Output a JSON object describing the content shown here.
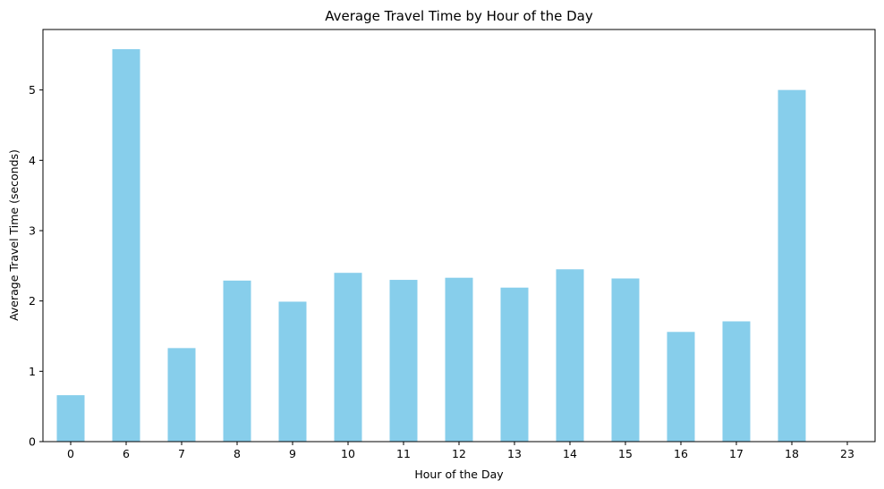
{
  "chart_data": {
    "type": "bar",
    "title": "Average Travel Time by Hour of the Day",
    "xlabel": "Hour of the Day",
    "ylabel": "Average Travel Time (seconds)",
    "categories": [
      "0",
      "6",
      "7",
      "8",
      "9",
      "10",
      "11",
      "12",
      "13",
      "14",
      "15",
      "16",
      "17",
      "18",
      "23"
    ],
    "values": [
      0.66,
      5.58,
      1.33,
      2.29,
      1.99,
      2.4,
      2.3,
      2.33,
      2.19,
      2.45,
      2.32,
      1.56,
      1.71,
      5.0,
      0
    ],
    "ylim": [
      0,
      5.86
    ],
    "yticks": [
      0,
      1,
      2,
      3,
      4,
      5
    ],
    "bar_color": "#87CEEB",
    "grid": false,
    "legend": "none"
  }
}
